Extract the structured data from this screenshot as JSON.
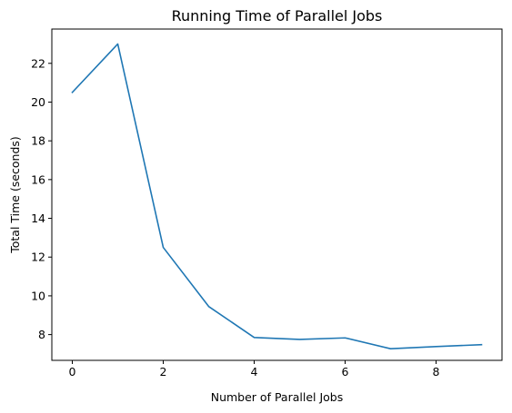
{
  "chart_data": {
    "type": "line",
    "title": "Running Time of Parallel Jobs",
    "xlabel": "Number of Parallel Jobs",
    "ylabel": "Total Time (seconds)",
    "xlim": [
      -0.45,
      9.45
    ],
    "ylim": [
      6.67,
      23.77
    ],
    "xticks": [
      0,
      2,
      4,
      6,
      8
    ],
    "yticks": [
      8,
      10,
      12,
      14,
      16,
      18,
      20,
      22
    ],
    "grid": false,
    "series": [
      {
        "color": "#1f77b4",
        "x": [
          0,
          1,
          2,
          3,
          4,
          5,
          6,
          7,
          8,
          9
        ],
        "y": [
          20.5,
          23.0,
          12.5,
          9.45,
          7.85,
          7.75,
          7.83,
          7.27,
          7.38,
          7.48
        ]
      }
    ]
  }
}
